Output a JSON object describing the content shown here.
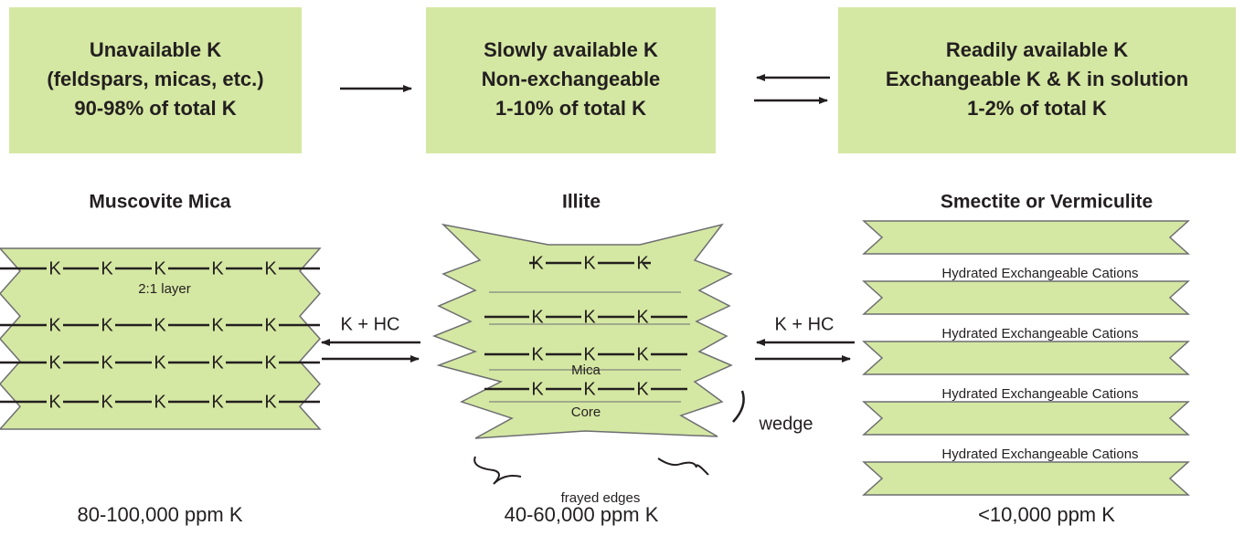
{
  "boxes": [
    {
      "lines": [
        "Unavailable K",
        "(feldspars, micas, etc.)",
        "90-98% of total K"
      ]
    },
    {
      "lines": [
        "Slowly available K",
        "Non-exchangeable",
        "1-10% of total K"
      ]
    },
    {
      "lines": [
        "Readily available K",
        "Exchangeable K & K in solution",
        "1-2% of total K"
      ]
    }
  ],
  "muscovite": {
    "name": "Muscovite Mica",
    "cation": "K",
    "layer_label": "2:1 layer",
    "ppm": "80-100,000 ppm K"
  },
  "illite": {
    "name": "Illite",
    "cation": "K",
    "core_labels": [
      "Mica",
      "Core"
    ],
    "wedge": "wedge",
    "frayed_edges": "frayed edges",
    "ppm": "40-60,000 ppm K"
  },
  "smectite": {
    "name": "Smectite or Vermiculite",
    "interlayer_label": "Hydrated Exchangeable Cations",
    "ppm": "<10,000 ppm K"
  },
  "exchange_labels": [
    "K + HC",
    "K + HC"
  ]
}
